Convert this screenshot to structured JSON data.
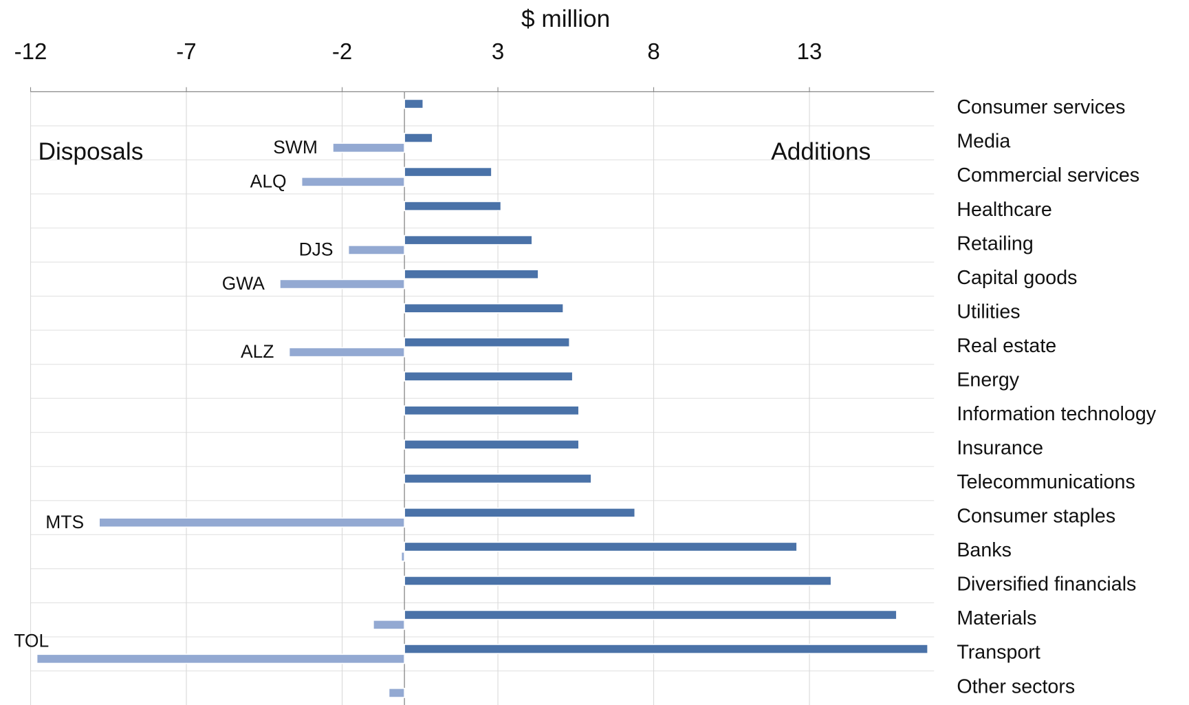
{
  "chart_data": {
    "type": "bar",
    "orientation": "horizontal",
    "x_label": "$ million",
    "categories": [
      "Consumer services",
      "Media",
      "Commercial services",
      "Healthcare",
      "Retailing",
      "Capital goods",
      "Utilities",
      "Real estate",
      "Energy",
      "Information technology",
      "Insurance",
      "Telecommunications",
      "Consumer staples",
      "Banks",
      "Diversified financials",
      "Materials",
      "Transport",
      "Other sectors"
    ],
    "series": [
      {
        "name": "Additions",
        "color": "#4a72a8",
        "values": [
          0.6,
          0.9,
          2.8,
          3.1,
          4.1,
          4.3,
          5.1,
          5.3,
          5.4,
          5.6,
          5.6,
          6.0,
          7.4,
          12.6,
          13.7,
          15.8,
          16.8,
          0
        ]
      },
      {
        "name": "Disposals",
        "color": "#93a9d2",
        "values": [
          0,
          -2.3,
          -3.3,
          0,
          -1.8,
          -4.0,
          0,
          -3.7,
          0,
          0,
          0,
          0,
          -9.8,
          -0.1,
          0,
          -1.0,
          -11.8,
          -0.5
        ],
        "point_labels": [
          null,
          "SWM",
          "ALQ",
          null,
          "DJS",
          "GWA",
          null,
          "ALZ",
          null,
          null,
          null,
          null,
          "MTS",
          null,
          null,
          null,
          "TOL",
          null
        ]
      }
    ],
    "xlim": [
      -12,
      17
    ],
    "xticks": [
      -12,
      -7,
      -2,
      3,
      8,
      13
    ],
    "grid": true
  }
}
